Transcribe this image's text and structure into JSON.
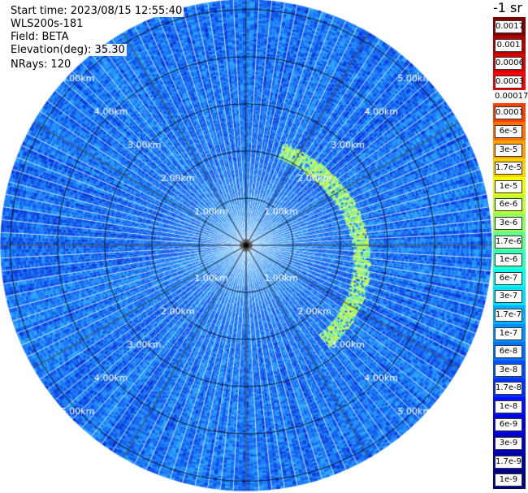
{
  "header": {
    "start_time": "Start time: 2023/08/15 12:55:40",
    "instrument": "WLS200s-181",
    "field": "Field: BETA",
    "elevation": "Elevation(deg): 35.30",
    "nrays": "NRays: 120"
  },
  "colorbar": {
    "unit_label": "-1 sr",
    "entries": [
      {
        "label": "0.0017",
        "color": "#800000"
      },
      {
        "label": "0.001",
        "color": "#b20000"
      },
      {
        "label": "0.0006",
        "color": "#d90000"
      },
      {
        "label": "0.0003",
        "color": "#ff0000"
      },
      {
        "label": "0.00017",
        "color": "#ffffff",
        "plain": true
      },
      {
        "label": "0.0001",
        "color": "#ff4000"
      },
      {
        "label": "6e-5",
        "color": "#ff7000"
      },
      {
        "label": "3e-5",
        "color": "#ffa000"
      },
      {
        "label": "1.7e-5",
        "color": "#ffd000"
      },
      {
        "label": "1e-5",
        "color": "#f0ff00"
      },
      {
        "label": "6e-6",
        "color": "#c0ff30"
      },
      {
        "label": "3e-6",
        "color": "#90ff60"
      },
      {
        "label": "1.7e-6",
        "color": "#60ff90"
      },
      {
        "label": "1e-6",
        "color": "#30ffc0"
      },
      {
        "label": "6e-7",
        "color": "#00fff0"
      },
      {
        "label": "3e-7",
        "color": "#00e0ff"
      },
      {
        "label": "1.7e-7",
        "color": "#00b0ff"
      },
      {
        "label": "1e-7",
        "color": "#0090ff"
      },
      {
        "label": "6e-8",
        "color": "#0070ff"
      },
      {
        "label": "3e-8",
        "color": "#0050ff"
      },
      {
        "label": "1.7e-8",
        "color": "#0030ff"
      },
      {
        "label": "1e-8",
        "color": "#0010ff"
      },
      {
        "label": "6e-9",
        "color": "#0000e0"
      },
      {
        "label": "3e-9",
        "color": "#0000c0"
      },
      {
        "label": "1.7e-9",
        "color": "#0000a0"
      },
      {
        "label": "1e-9",
        "color": "#000080"
      }
    ]
  },
  "chart_data": {
    "type": "heatmap",
    "projection": "polar-ppi",
    "field": "BETA",
    "elevation_deg": 35.3,
    "n_rays": 120,
    "range_rings_km": [
      1,
      2,
      3,
      4,
      5
    ],
    "ring_labels": [
      "1.00km",
      "2.00km",
      "3.00km",
      "4.00km",
      "5.00km"
    ],
    "max_range_km": 5.2,
    "spokes_every_deg": 30,
    "scale": "log",
    "value_range": [
      1e-09,
      0.0017
    ],
    "background_level": "~1e-7 to 6e-8",
    "features": [
      {
        "description": "aerosol/cloud arc",
        "azimuth_deg_range": [
          20,
          140
        ],
        "range_km": [
          2.0,
          2.7
        ],
        "level": "~3e-6 to 1e-5"
      }
    ]
  }
}
